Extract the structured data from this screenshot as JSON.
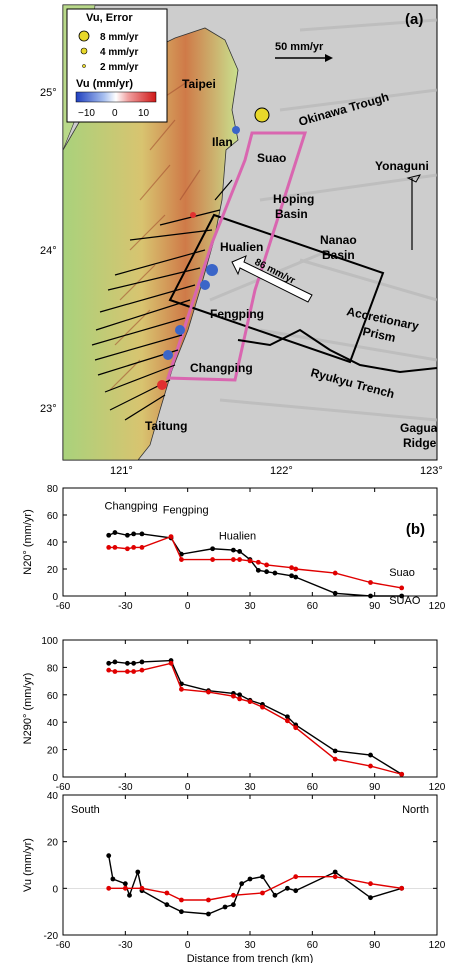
{
  "map": {
    "panel_label": "(a)",
    "legend": {
      "title": "Vu, Error",
      "items": [
        "8 mm/yr",
        "4 mm/yr",
        "2 mm/yr"
      ],
      "colorbar_title": "Vu (mm/yr)",
      "colorbar_ticks": [
        "−10",
        "0",
        "10"
      ]
    },
    "scale_label": "50 mm/yr",
    "plate_vector_label": "86 mm/yr",
    "places": [
      "Taipei",
      "Ilan",
      "Suao",
      "Hoping Basin",
      "Hualien",
      "Fengping",
      "Changping",
      "Taitung",
      "Okinawa Trough",
      "Yonaguni",
      "Nanao Basin",
      "Accretionary Prism",
      "Ryukyu Trench",
      "Gagua Ridge"
    ],
    "lat_ticks": [
      "25°",
      "24°",
      "23°"
    ],
    "lon_ticks": [
      "121°",
      "122°",
      "123°"
    ],
    "colors": {
      "ocean": "#cfcfcf",
      "land_low": "#b7d98a",
      "land_high": "#d25a3c",
      "box": "#000000",
      "pink_box": "#d966b0"
    }
  },
  "chart_data": [
    {
      "type": "line",
      "panel_label": "(b)",
      "ylabel": "N20° (mm/yr)",
      "xlim": [
        -60,
        120
      ],
      "ylim": [
        0,
        80
      ],
      "xticks": [
        -60,
        -30,
        0,
        30,
        60,
        90,
        120
      ],
      "yticks": [
        0,
        20,
        40,
        60,
        80
      ],
      "annotations": [
        "Changping",
        "Fengping",
        "Hualien",
        "Suao",
        "SUAO"
      ],
      "series": [
        {
          "color": "#000000",
          "x": [
            -38,
            -35,
            -29,
            -26,
            -22,
            -8,
            -3,
            12,
            22,
            25,
            30,
            34,
            38,
            42,
            50,
            52,
            71,
            88,
            103
          ],
          "y": [
            45,
            47,
            45,
            46,
            46,
            43,
            31,
            35,
            34,
            33,
            27,
            19,
            18,
            17,
            15,
            14,
            2,
            0,
            0
          ]
        },
        {
          "color": "#e00000",
          "x": [
            -38,
            -35,
            -29,
            -26,
            -22,
            -8,
            -3,
            12,
            22,
            25,
            30,
            34,
            38,
            50,
            52,
            71,
            88,
            103
          ],
          "y": [
            36,
            36,
            35,
            36,
            36,
            44,
            27,
            27,
            27,
            27,
            26,
            25,
            23,
            21,
            20,
            17,
            10,
            6
          ]
        }
      ]
    },
    {
      "type": "line",
      "ylabel": "N290° (mm/yr)",
      "xlim": [
        -60,
        120
      ],
      "ylim": [
        0,
        100
      ],
      "xticks": [
        -60,
        -30,
        0,
        30,
        60,
        90,
        120
      ],
      "yticks": [
        0,
        20,
        40,
        60,
        80,
        100
      ],
      "series": [
        {
          "color": "#000000",
          "x": [
            -38,
            -35,
            -29,
            -26,
            -22,
            -8,
            -3,
            10,
            22,
            25,
            30,
            36,
            48,
            52,
            71,
            88,
            103
          ],
          "y": [
            83,
            84,
            83,
            83,
            84,
            85,
            68,
            63,
            61,
            60,
            56,
            53,
            44,
            38,
            19,
            16,
            2
          ]
        },
        {
          "color": "#e00000",
          "x": [
            -38,
            -35,
            -29,
            -26,
            -22,
            -8,
            -3,
            10,
            22,
            25,
            30,
            36,
            48,
            52,
            71,
            88,
            103
          ],
          "y": [
            78,
            77,
            77,
            77,
            78,
            83,
            64,
            62,
            59,
            57,
            55,
            51,
            41,
            36,
            13,
            8,
            2
          ]
        }
      ]
    },
    {
      "type": "line",
      "ylabel": "Vu (mm/yr)",
      "xlabel": "Distance from trench (km)",
      "xlim": [
        -60,
        120
      ],
      "ylim": [
        -20,
        40
      ],
      "xticks": [
        -60,
        -30,
        0,
        30,
        60,
        90,
        120
      ],
      "yticks": [
        -20,
        0,
        20,
        40
      ],
      "annotations": [
        "South",
        "North"
      ],
      "series": [
        {
          "color": "#000000",
          "x": [
            -38,
            -36,
            -30,
            -28,
            -24,
            -22,
            -10,
            -3,
            10,
            18,
            22,
            26,
            30,
            36,
            42,
            48,
            52,
            71,
            88,
            103
          ],
          "y": [
            14,
            4,
            2,
            -3,
            7,
            -1,
            -7,
            -10,
            -11,
            -8,
            -7,
            2,
            4,
            5,
            -3,
            0,
            -1,
            7,
            -4,
            0
          ]
        },
        {
          "color": "#e00000",
          "x": [
            -38,
            -30,
            -22,
            -10,
            -3,
            10,
            22,
            36,
            52,
            71,
            88,
            103
          ],
          "y": [
            0,
            0,
            0,
            -2,
            -5,
            -5,
            -3,
            -2,
            5,
            5,
            2,
            0
          ]
        }
      ]
    }
  ]
}
